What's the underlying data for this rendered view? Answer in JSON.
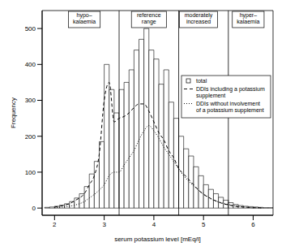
{
  "chart_data": {
    "type": "histogram",
    "xlabel": "serum potassium level [mEq/l]",
    "ylabel": "Frequency",
    "xlim": [
      1.75,
      6.4
    ],
    "ylim": [
      -20,
      550
    ],
    "xticks": [
      2,
      3,
      4,
      5,
      6
    ],
    "yticks": [
      0,
      100,
      200,
      300,
      400,
      500
    ],
    "legend": "upper right",
    "bins": [
      1.8,
      1.9,
      2.0,
      2.1,
      2.2,
      2.3,
      2.4,
      2.5,
      2.6,
      2.7,
      2.8,
      2.9,
      3.0,
      3.1,
      3.2,
      3.3,
      3.4,
      3.5,
      3.6,
      3.7,
      3.8,
      3.9,
      4.0,
      4.1,
      4.2,
      4.3,
      4.4,
      4.5,
      4.6,
      4.7,
      4.8,
      4.9,
      5.0,
      5.1,
      5.2,
      5.3,
      5.4,
      5.5,
      5.6,
      5.7,
      5.8,
      5.9,
      6.0,
      6.1,
      6.2,
      6.3,
      6.4
    ],
    "x": [
      2.0,
      2.1,
      2.2,
      2.3,
      2.4,
      2.5,
      2.6,
      2.7,
      2.8,
      2.9,
      3.0,
      3.1,
      3.2,
      3.3,
      3.4,
      3.5,
      3.6,
      3.7,
      3.8,
      3.9,
      4.0,
      4.1,
      4.2,
      4.3,
      4.4,
      4.5,
      4.6,
      4.7,
      4.8,
      4.9,
      5.0,
      5.1,
      5.2,
      5.3,
      5.4,
      5.5,
      5.6,
      5.7,
      5.8,
      5.9,
      6.0,
      6.1,
      6.2
    ],
    "series": [
      {
        "name": "total",
        "type": "histogram",
        "color": "#000000",
        "values": [
          2,
          3,
          5,
          8,
          12,
          18,
          28,
          40,
          60,
          95,
          130,
          185,
          400,
          330,
          265,
          330,
          350,
          385,
          440,
          470,
          500,
          440,
          415,
          345,
          385,
          295,
          250,
          200,
          165,
          145,
          115,
          90,
          65,
          52,
          40,
          30,
          22,
          15,
          10,
          7,
          5,
          4,
          3,
          2,
          1,
          1
        ]
      },
      {
        "name": "DDIs including a potassium supplement",
        "type": "line",
        "line_style": "dashed",
        "color": "#000000",
        "values": [
          3,
          5,
          8,
          12,
          20,
          28,
          40,
          65,
          90,
          150,
          300,
          350,
          240,
          250,
          255,
          265,
          280,
          290,
          290,
          270,
          240,
          210,
          190,
          160,
          140,
          110,
          95,
          80,
          65,
          50,
          38,
          30,
          23,
          17,
          12,
          9,
          6,
          4,
          3,
          2,
          1,
          1,
          0
        ]
      },
      {
        "name": "DDIs without involvement of a potassium supplement",
        "type": "line",
        "line_style": "dotted",
        "color": "#000000",
        "values": [
          1,
          2,
          3,
          5,
          8,
          12,
          18,
          28,
          38,
          50,
          65,
          90,
          100,
          100,
          120,
          140,
          160,
          190,
          215,
          230,
          215,
          195,
          170,
          150,
          130,
          110,
          90,
          75,
          62,
          50,
          40,
          30,
          22,
          17,
          13,
          10,
          7,
          5,
          3,
          2,
          1,
          1,
          0
        ]
      }
    ],
    "reference_lines": [
      3.3,
      4.5,
      5.5
    ],
    "annotations": [
      {
        "text": [
          "hypo–",
          "kalaemia"
        ],
        "x": 2.6
      },
      {
        "text": [
          "reference",
          "range"
        ],
        "x": 3.9
      },
      {
        "text": [
          "moderately",
          "increased"
        ],
        "x": 4.9
      },
      {
        "text": [
          "hyper–",
          "kalaemia"
        ],
        "x": 5.9
      }
    ]
  }
}
